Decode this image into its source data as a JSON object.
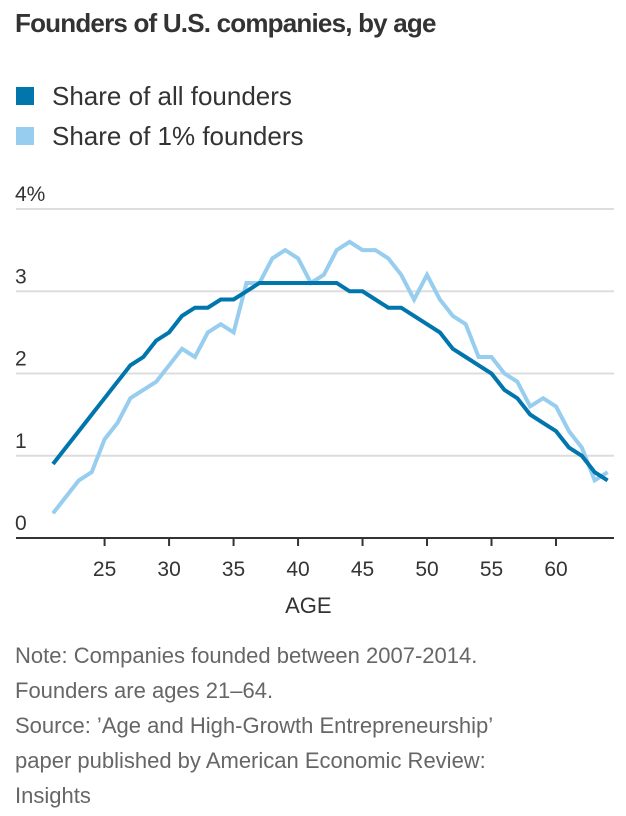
{
  "title": "Founders of U.S. companies, by age",
  "legend": [
    {
      "label": "Share of all founders",
      "color": "#0076ad"
    },
    {
      "label": "Share of 1% founders",
      "color": "#97cdee"
    }
  ],
  "notes": {
    "note_line1": "Note: Companies founded between 2007-2014.",
    "note_line2": "Founders are ages 21–64.",
    "source_line1": "Source: ’Age and High-Growth Entrepreneurship’",
    "source_line2": "paper published by American Economic Review:",
    "source_line3": "Insights"
  },
  "chart_data": {
    "type": "line",
    "title": "Founders of U.S. companies, by age",
    "xlabel": "AGE",
    "ylabel": "",
    "x": [
      21,
      22,
      23,
      24,
      25,
      26,
      27,
      28,
      29,
      30,
      31,
      32,
      33,
      34,
      35,
      36,
      37,
      38,
      39,
      40,
      41,
      42,
      43,
      44,
      45,
      46,
      47,
      48,
      49,
      50,
      51,
      52,
      53,
      54,
      55,
      56,
      57,
      58,
      59,
      60,
      61,
      62,
      63,
      64
    ],
    "xlim": [
      19,
      65
    ],
    "ylim": [
      0,
      4
    ],
    "x_ticks": [
      25,
      30,
      35,
      40,
      45,
      50,
      55,
      60
    ],
    "x_tick_labels": [
      "25",
      "30",
      "35",
      "40",
      "45",
      "50",
      "55",
      "60"
    ],
    "y_ticks": [
      0,
      1,
      2,
      3,
      4
    ],
    "y_tick_labels": [
      "0",
      "1",
      "2",
      "3",
      "4%"
    ],
    "grid": true,
    "legend_position": "top-left",
    "series": [
      {
        "name": "Share of all founders",
        "color": "#0076ad",
        "values": [
          0.9,
          1.1,
          1.3,
          1.5,
          1.7,
          1.9,
          2.1,
          2.2,
          2.4,
          2.5,
          2.7,
          2.8,
          2.8,
          2.9,
          2.9,
          3.0,
          3.1,
          3.1,
          3.1,
          3.1,
          3.1,
          3.1,
          3.1,
          3.0,
          3.0,
          2.9,
          2.8,
          2.8,
          2.7,
          2.6,
          2.5,
          2.3,
          2.2,
          2.1,
          2.0,
          1.8,
          1.7,
          1.5,
          1.4,
          1.3,
          1.1,
          1.0,
          0.8,
          0.7
        ]
      },
      {
        "name": "Share of 1% founders",
        "color": "#97cdee",
        "values": [
          0.3,
          0.5,
          0.7,
          0.8,
          1.2,
          1.4,
          1.7,
          1.8,
          1.9,
          2.1,
          2.3,
          2.2,
          2.5,
          2.6,
          2.5,
          3.1,
          3.1,
          3.4,
          3.5,
          3.4,
          3.1,
          3.2,
          3.5,
          3.6,
          3.5,
          3.5,
          3.4,
          3.2,
          2.9,
          3.2,
          2.9,
          2.7,
          2.6,
          2.2,
          2.2,
          2.0,
          1.9,
          1.6,
          1.7,
          1.6,
          1.3,
          1.1,
          0.7,
          0.8
        ]
      }
    ]
  }
}
